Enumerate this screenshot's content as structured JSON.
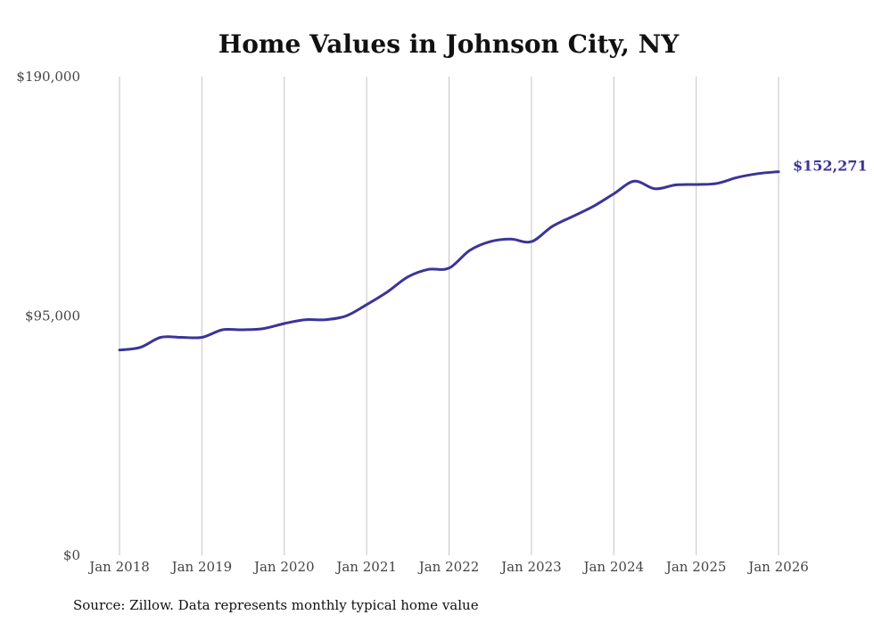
{
  "chart_data": {
    "type": "line",
    "title": "Home Values in Johnson City, NY",
    "source": "Source: Zillow. Data represents monthly typical home value",
    "xlabel": "",
    "ylabel": "",
    "ylim": [
      0,
      190000
    ],
    "y_ticks": [
      {
        "value": 0,
        "label": "$0"
      },
      {
        "value": 95000,
        "label": "$95,000"
      },
      {
        "value": 190000,
        "label": "$190,000"
      }
    ],
    "x_ticks": [
      {
        "value": 2018,
        "label": "Jan 2018"
      },
      {
        "value": 2019,
        "label": "Jan 2019"
      },
      {
        "value": 2020,
        "label": "Jan 2020"
      },
      {
        "value": 2021,
        "label": "Jan 2021"
      },
      {
        "value": 2022,
        "label": "Jan 2022"
      },
      {
        "value": 2023,
        "label": "Jan 2023"
      },
      {
        "value": 2024,
        "label": "Jan 2024"
      },
      {
        "value": 2025,
        "label": "Jan 2025"
      },
      {
        "value": 2026,
        "label": "Jan 2026"
      }
    ],
    "xlim": [
      2018,
      2026
    ],
    "grid": "vertical",
    "series": [
      {
        "name": "Typical home value",
        "color": "#3b3499",
        "end_label": "$152,271",
        "x": [
          2018,
          2018.25,
          2018.5,
          2018.75,
          2019,
          2019.25,
          2019.5,
          2019.75,
          2020,
          2020.25,
          2020.5,
          2020.75,
          2021,
          2021.25,
          2021.5,
          2021.75,
          2022,
          2022.25,
          2022.5,
          2022.75,
          2023,
          2023.25,
          2023.5,
          2023.75,
          2024,
          2024.25,
          2024.5,
          2024.75,
          2025,
          2025.25,
          2025.5,
          2025.75,
          2026
        ],
        "values": [
          81500,
          82500,
          86500,
          86500,
          86500,
          89500,
          89500,
          90000,
          92000,
          93500,
          93500,
          95000,
          99500,
          104500,
          110500,
          113500,
          114000,
          121000,
          124500,
          125500,
          124500,
          130500,
          134500,
          138500,
          143500,
          148500,
          145500,
          147000,
          147200,
          147600,
          150000,
          151500,
          152271
        ]
      }
    ]
  }
}
